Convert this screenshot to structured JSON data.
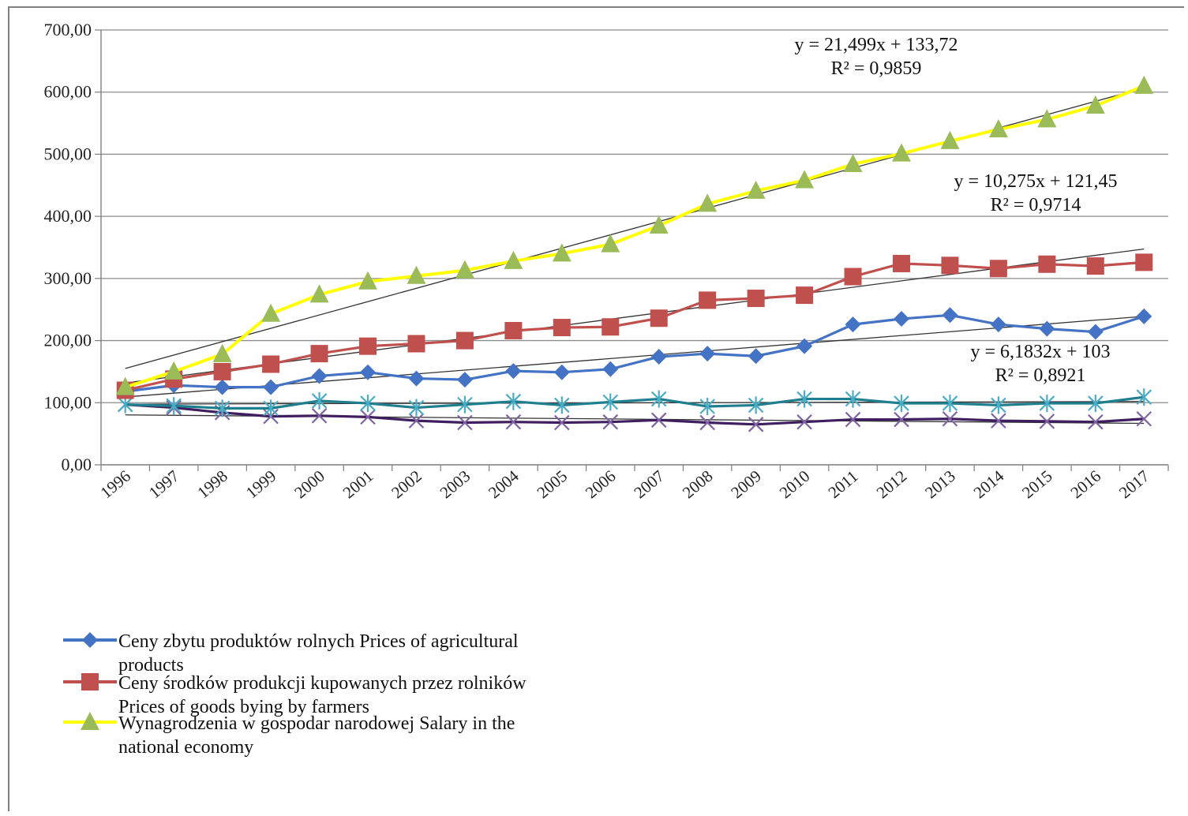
{
  "chart_data": {
    "type": "line",
    "title": "",
    "xlabel": "",
    "ylabel": "",
    "ylim": [
      0,
      700
    ],
    "y_ticks": [
      "0,00",
      "100,00",
      "200,00",
      "300,00",
      "400,00",
      "500,00",
      "600,00",
      "700,00"
    ],
    "categories": [
      "1996",
      "1997",
      "1998",
      "1999",
      "2000",
      "2001",
      "2002",
      "2003",
      "2004",
      "2005",
      "2006",
      "2007",
      "2008",
      "2009",
      "2010",
      "2011",
      "2012",
      "2013",
      "2014",
      "2015",
      "2016",
      "2017"
    ],
    "grid": true,
    "legend_position": "bottom-left",
    "series": [
      {
        "name": "Ceny zbytu produktów rolnych   Prices of agricultural products",
        "legend_lines": [
          "Ceny zbytu produktów rolnych   Prices of agricultural",
          "products"
        ],
        "color": "#4472c4",
        "marker": "diamond",
        "values": [
          118,
          128,
          125,
          125,
          143,
          149,
          139,
          137,
          151,
          149,
          154,
          174,
          179,
          175,
          191,
          226,
          235,
          241,
          226,
          219,
          214,
          239
        ]
      },
      {
        "name": "Ceny środków produkcji kupowanych przez rolników Prices of goods bying by farmers",
        "legend_lines": [
          "Ceny środków produkcji kupowanych przez rolników",
          "Prices of goods bying by farmers"
        ],
        "color": "#c0504d",
        "marker": "square",
        "values": [
          120,
          138,
          150,
          162,
          179,
          191,
          195,
          200,
          216,
          221,
          222,
          236,
          265,
          268,
          273,
          303,
          324,
          321,
          316,
          323,
          320,
          326
        ]
      },
      {
        "name": "Wynagrodzenia w gospodar narodowej Salary in the national economy",
        "legend_lines": [
          "Wynagrodzenia w gospodar narodowej Salary in the",
          "national economy"
        ],
        "color": "#ffff00",
        "marker_color": "#9bbb59",
        "marker": "triangle",
        "values": [
          125,
          150,
          178,
          243,
          274,
          295,
          304,
          313,
          328,
          340,
          355,
          385,
          420,
          441,
          458,
          484,
          501,
          521,
          540,
          556,
          578,
          610
        ]
      },
      {
        "name": "",
        "color": "#1f7f8f",
        "marker_color": "#4bacc6",
        "marker": "asterisk",
        "values": [
          97,
          95,
          91,
          91,
          103,
          99,
          92,
          97,
          102,
          96,
          101,
          106,
          94,
          96,
          106,
          106,
          99,
          99,
          96,
          99,
          99,
          109
        ]
      },
      {
        "name": "",
        "color": "#3f1f5f",
        "marker_color": "#8064a2",
        "marker": "x",
        "values": [
          97,
          92,
          84,
          78,
          79,
          77,
          71,
          68,
          69,
          68,
          69,
          72,
          68,
          65,
          69,
          73,
          73,
          74,
          71,
          70,
          69,
          74
        ]
      }
    ],
    "trendlines": [
      {
        "series": 2,
        "equation": "y = 21,499x + 133,72",
        "r2": "R² = 0,9859",
        "slope": 21.499,
        "intercept": 133.72
      },
      {
        "series": 1,
        "equation": "y = 10,275x + 121,45",
        "r2": "R² = 0,9714",
        "slope": 10.275,
        "intercept": 121.45
      },
      {
        "series": 0,
        "equation": "y = 6,1832x + 103",
        "r2": "R² = 0,8921",
        "slope": 6.1832,
        "intercept": 103
      },
      {
        "series": 3,
        "slope": 0.2,
        "intercept": 97.5
      },
      {
        "series": 4,
        "slope": -0.65,
        "intercept": 81
      }
    ]
  }
}
